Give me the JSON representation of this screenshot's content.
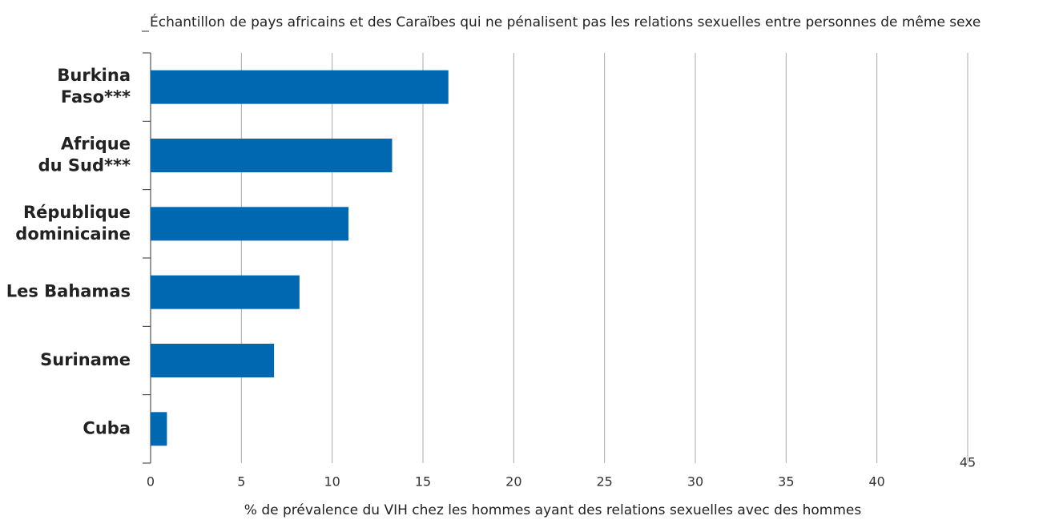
{
  "chart_data": {
    "type": "bar",
    "orientation": "horizontal",
    "title": "Échantillon de pays africains et des Caraïbes qui ne pénalisent pas les relations sexuelles entre personnes de même sexe",
    "xlabel": "% de prévalence du VIH chez les hommes ayant des relations sexuelles avec des hommes",
    "categories": [
      [
        "Burkina",
        "Faso***"
      ],
      [
        "Afrique",
        "du Sud***"
      ],
      [
        "République",
        "dominicaine"
      ],
      [
        "Les Bahamas"
      ],
      [
        "Suriname"
      ],
      [
        "Cuba"
      ]
    ],
    "values": [
      16.4,
      13.3,
      10.9,
      8.2,
      6.8,
      0.9
    ],
    "color": "#0068b1",
    "xlim": [
      0,
      45
    ],
    "xticks": [
      0,
      5,
      10,
      15,
      20,
      25,
      30,
      35,
      40,
      45
    ],
    "grid": true
  }
}
